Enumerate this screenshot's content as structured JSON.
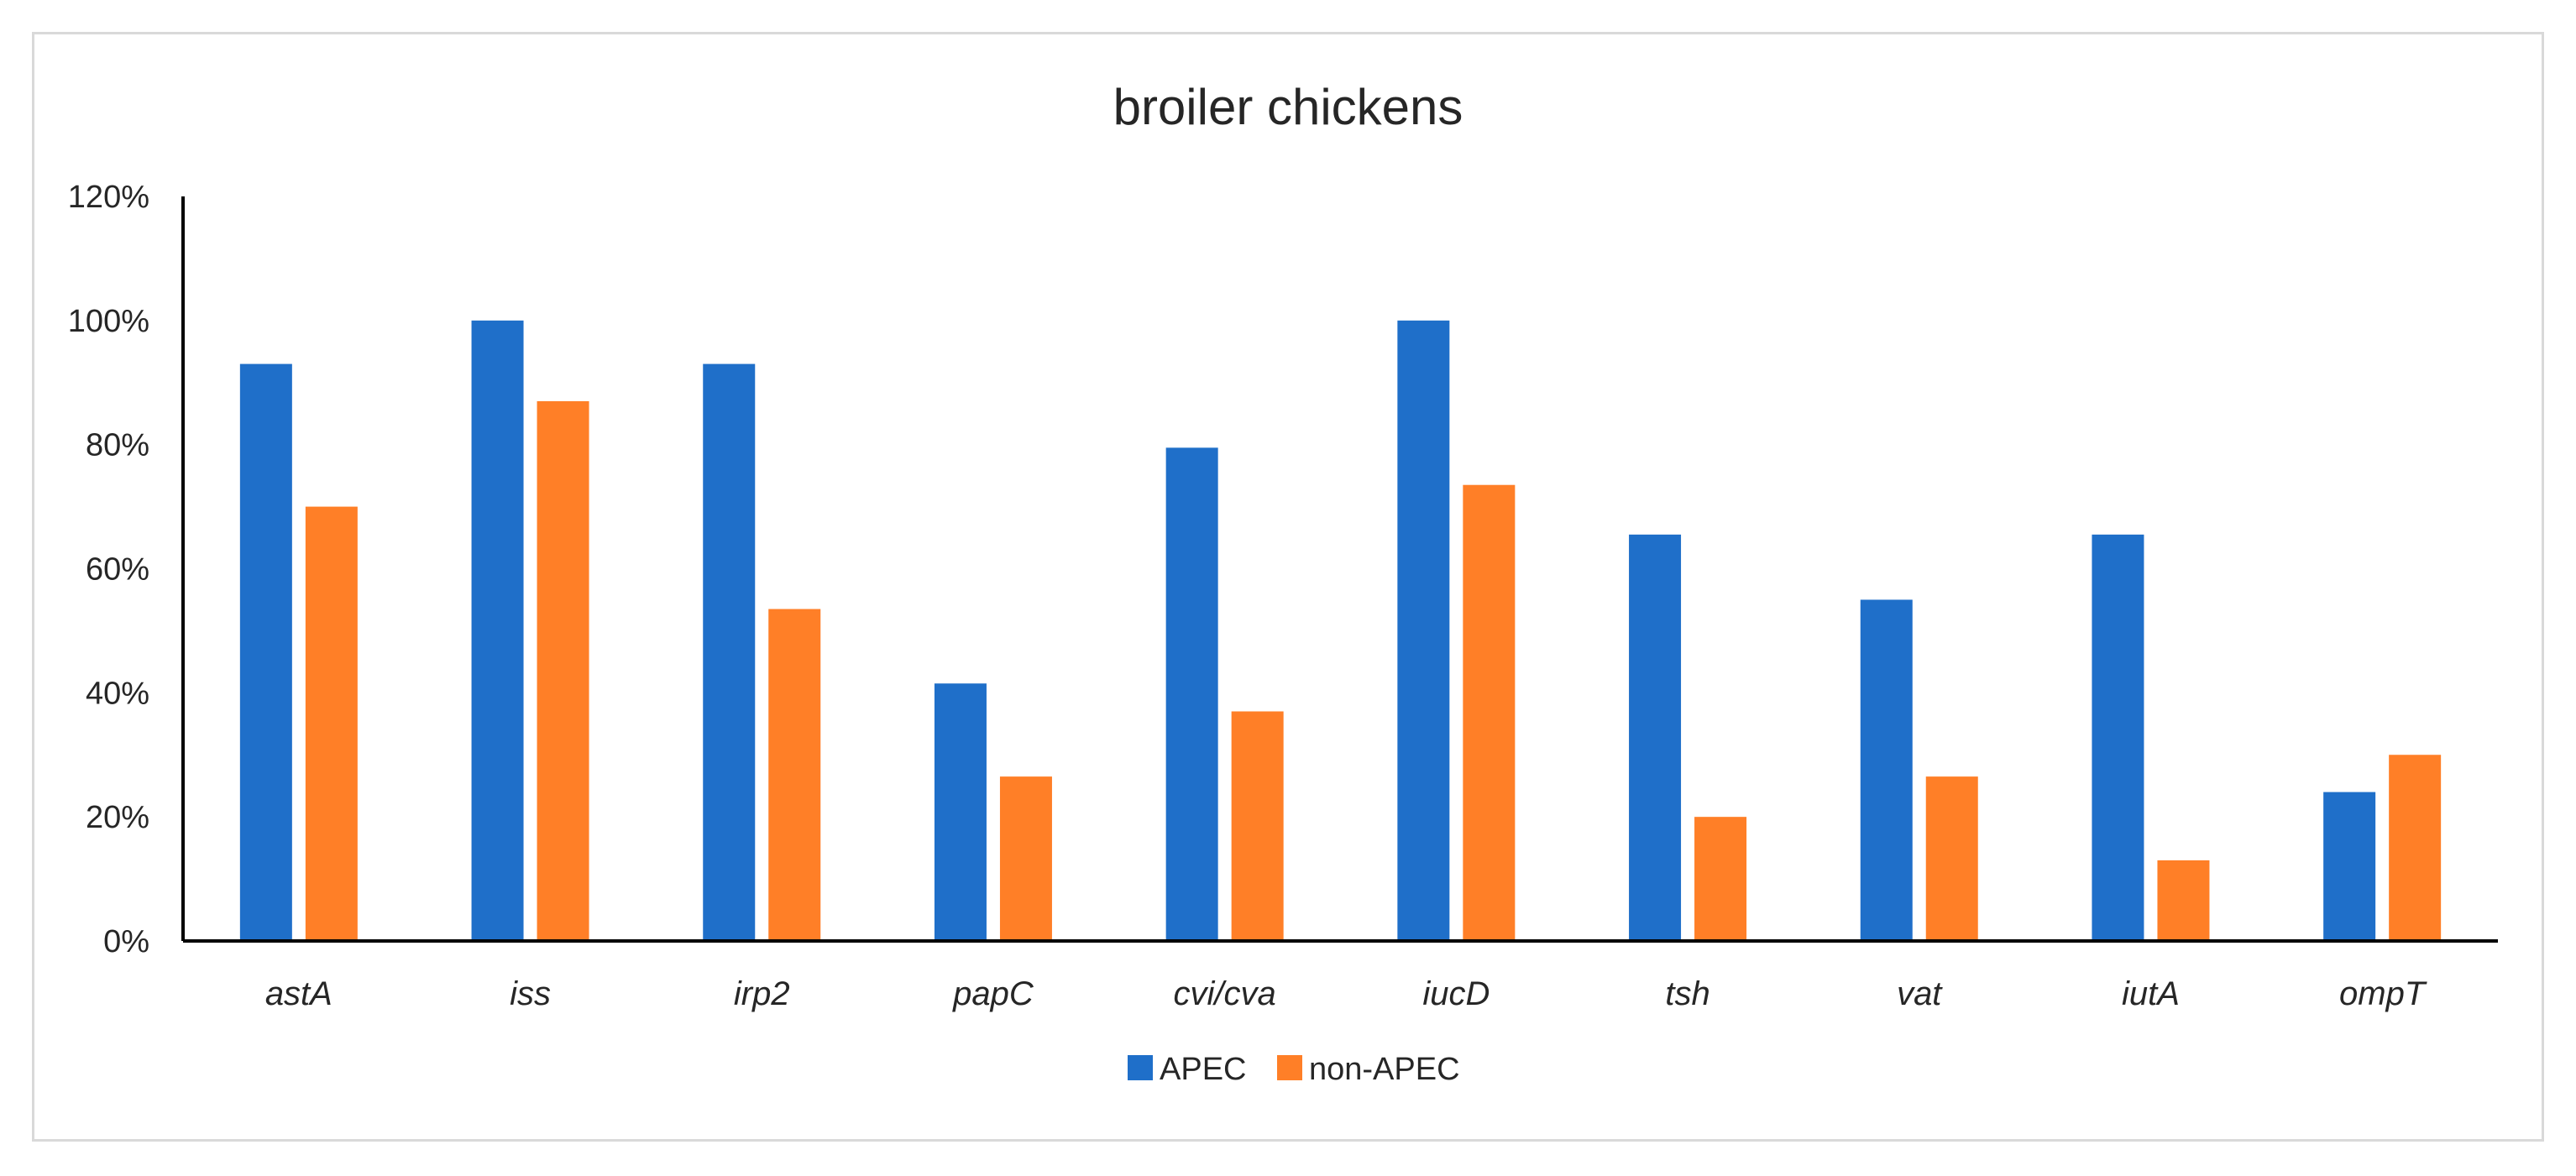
{
  "chart_data": {
    "type": "bar",
    "title": "broiler chickens",
    "xlabel": "",
    "ylabel": "",
    "ylim": [
      0,
      120
    ],
    "y_ticks": [
      "0%",
      "20%",
      "40%",
      "60%",
      "80%",
      "100%",
      "120%"
    ],
    "grid": false,
    "legend_position": "bottom",
    "categories": [
      "astA",
      "iss",
      "irp2",
      "papC",
      "cvi/cva",
      "iucD",
      "tsh",
      "vat",
      "iutA",
      "ompT"
    ],
    "series": [
      {
        "name": "APEC",
        "color": "#1f6fc9",
        "values": [
          93,
          100,
          93,
          41.5,
          79.5,
          100,
          65.5,
          55,
          65.5,
          24
        ]
      },
      {
        "name": "non-APEC",
        "color": "#ff7f27",
        "values": [
          70,
          87,
          53.5,
          26.5,
          37,
          73.5,
          20,
          26.5,
          13,
          30
        ]
      }
    ]
  }
}
